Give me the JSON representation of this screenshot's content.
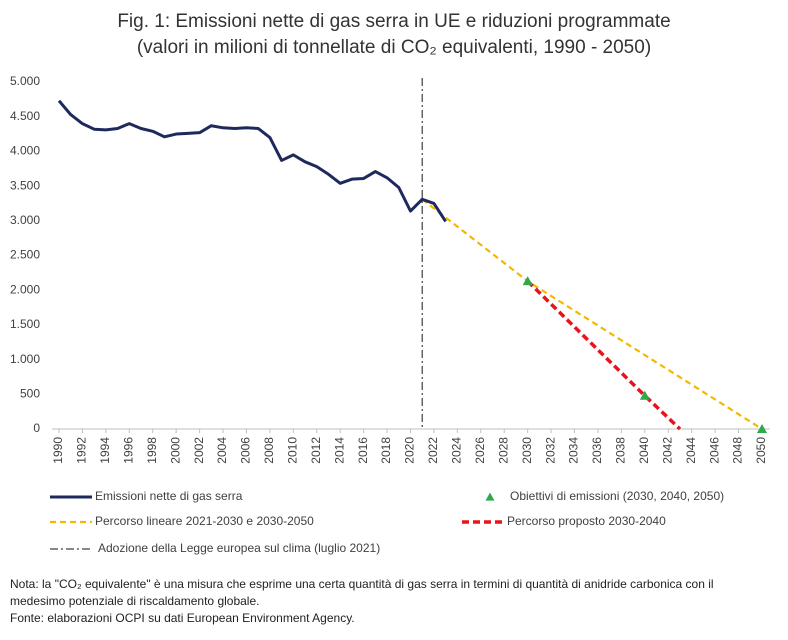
{
  "chart_data": {
    "type": "line",
    "title": "Fig. 1: Emissioni nette di gas serra in UE e riduzioni programmate",
    "subtitle": "(valori in milioni di tonnellate di CO₂ equivalenti, 1990 - 2050)",
    "xlim": [
      1990,
      2050
    ],
    "xticks": [
      1990,
      1992,
      1994,
      1996,
      1998,
      2000,
      2002,
      2004,
      2006,
      2008,
      2010,
      2012,
      2014,
      2016,
      2018,
      2020,
      2022,
      2024,
      2026,
      2028,
      2030,
      2032,
      2034,
      2036,
      2038,
      2040,
      2042,
      2044,
      2046,
      2048,
      2050
    ],
    "ylim": [
      0,
      5000
    ],
    "yticks": [
      0,
      {
        "value": 500,
        "label": "500"
      },
      {
        "value": 1000,
        "label": "1.000"
      },
      {
        "value": 1500,
        "label": "1.500"
      },
      {
        "value": 2000,
        "label": "2.000"
      },
      {
        "value": 2500,
        "label": "2.500"
      },
      {
        "value": 3000,
        "label": "3.000"
      },
      {
        "value": 3500,
        "label": "3.500"
      },
      {
        "value": 4000,
        "label": "4.000"
      },
      {
        "value": 4500,
        "label": "4.500"
      },
      {
        "value": 5000,
        "label": "5.000"
      }
    ],
    "grid": false,
    "series": [
      {
        "name": "Emissioni nette di gas serra",
        "color": "#1f2a5c",
        "style": "solid",
        "x": [
          1990,
          1991,
          1992,
          1993,
          1994,
          1995,
          1996,
          1997,
          1998,
          1999,
          2000,
          2001,
          2002,
          2003,
          2004,
          2005,
          2006,
          2007,
          2008,
          2009,
          2010,
          2011,
          2012,
          2013,
          2014,
          2015,
          2016,
          2017,
          2018,
          2019,
          2020,
          2021,
          2022,
          2023
        ],
        "values": [
          4730,
          4530,
          4400,
          4320,
          4310,
          4330,
          4400,
          4330,
          4290,
          4210,
          4250,
          4260,
          4270,
          4370,
          4340,
          4330,
          4340,
          4330,
          4200,
          3870,
          3950,
          3850,
          3780,
          3670,
          3540,
          3600,
          3610,
          3710,
          3620,
          3480,
          3140,
          3310,
          3250,
          2990
        ]
      },
      {
        "name": "Obiettivi di emissioni (2030, 2040, 2050)",
        "color": "#2eaa4a",
        "style": "marker",
        "x": [
          2030,
          2040,
          2050
        ],
        "values": [
          2130,
          480,
          0
        ]
      },
      {
        "name": "Percorso lineare 2021-2030 e 2030-2050",
        "color": "#f5b800",
        "style": "dashed",
        "x": [
          2021,
          2030,
          2050
        ],
        "values": [
          3310,
          2130,
          0
        ]
      },
      {
        "name": "Percorso proposto 2030-2040",
        "color": "#e8141c",
        "style": "dashed-bold",
        "x": [
          2030,
          2040,
          2043
        ],
        "values": [
          2130,
          480,
          0
        ]
      }
    ],
    "vlines": [
      {
        "x": 2021,
        "label": "Adozione della Legge europea sul clima (luglio 2021)",
        "color": "#404040"
      }
    ]
  },
  "notes": [
    "Nota: la \"CO₂ equivalente\" è una misura che esprime una certa quantità di gas serra in termini di quantità di anidride carbonica con il",
    "medesimo potenziale di riscaldamento globale.",
    "Fonte: elaborazioni OCPI su dati European Environment Agency."
  ]
}
